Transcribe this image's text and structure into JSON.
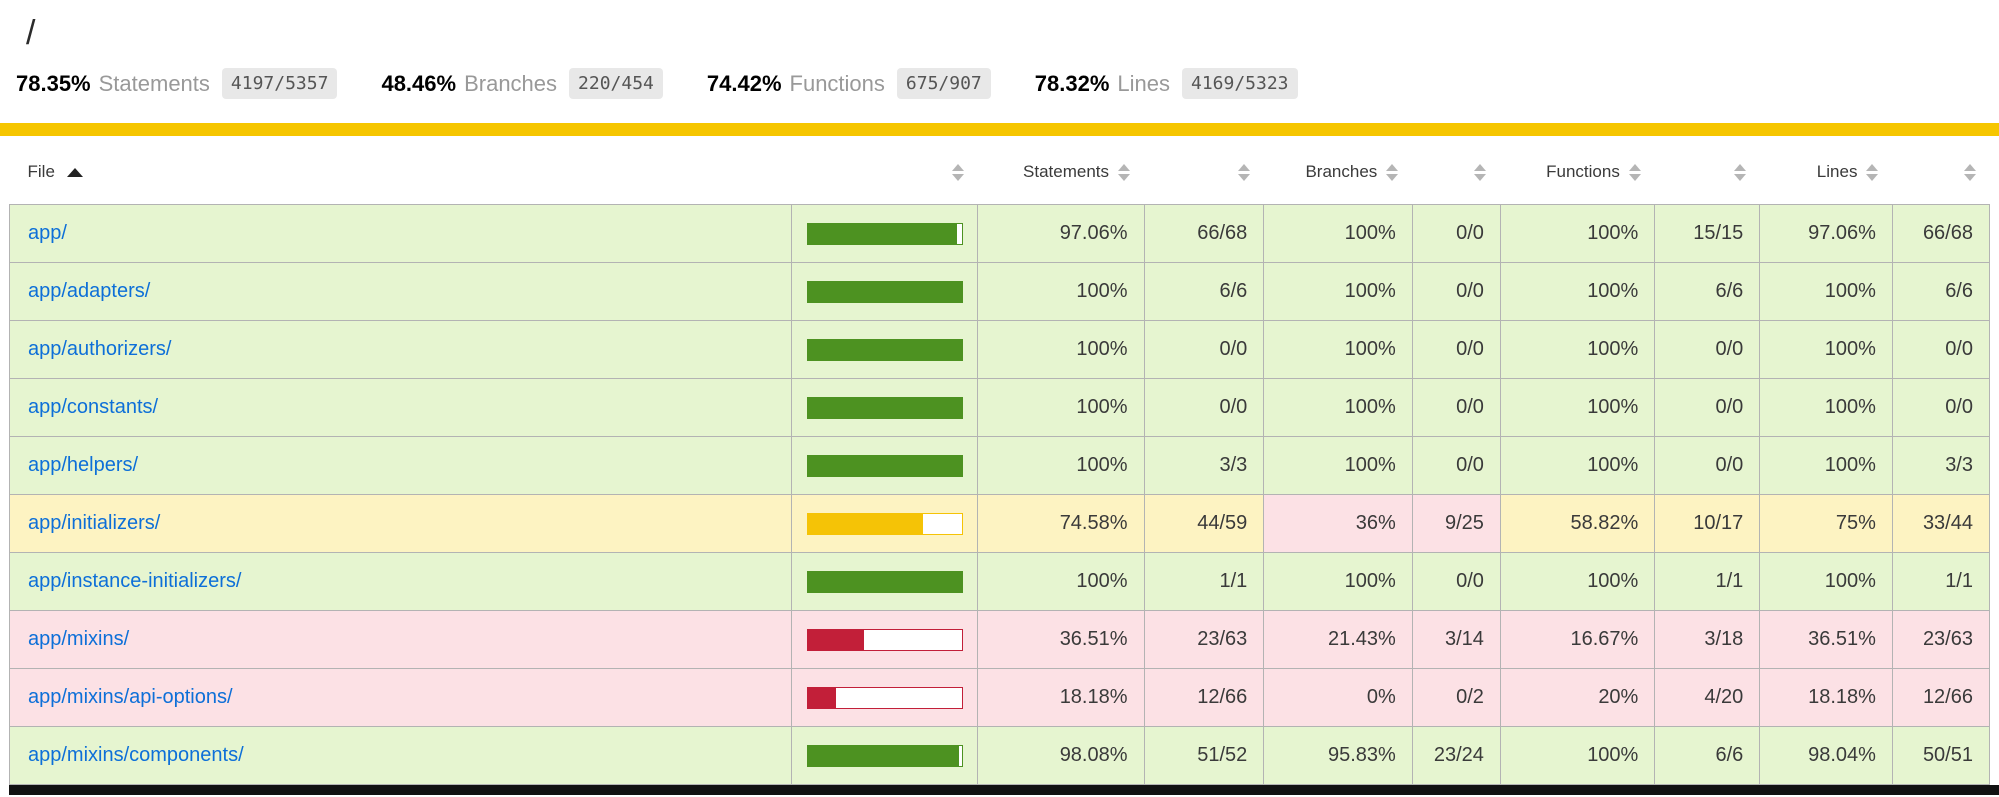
{
  "header": {
    "path": "/",
    "metrics": [
      {
        "pct": "78.35%",
        "label": "Statements",
        "fraction": "4197/5357"
      },
      {
        "pct": "48.46%",
        "label": "Branches",
        "fraction": "220/454"
      },
      {
        "pct": "74.42%",
        "label": "Functions",
        "fraction": "675/907"
      },
      {
        "pct": "78.32%",
        "label": "Lines",
        "fraction": "4169/5323"
      }
    ]
  },
  "colors": {
    "keyline": "#f6c600",
    "green": "#4d9221",
    "yellow": "#f5c306",
    "red": "#c21f39",
    "link": "#0d6fd8"
  },
  "table": {
    "header_cells": [
      {
        "label": "File",
        "type": "file",
        "sorted": "asc"
      },
      {
        "label": "",
        "type": "blank"
      },
      {
        "label": "Statements",
        "type": "pct"
      },
      {
        "label": "",
        "type": "blank"
      },
      {
        "label": "Branches",
        "type": "pct"
      },
      {
        "label": "",
        "type": "blank"
      },
      {
        "label": "Functions",
        "type": "pct"
      },
      {
        "label": "",
        "type": "blank"
      },
      {
        "label": "Lines",
        "type": "pct"
      },
      {
        "label": "",
        "type": "blank"
      }
    ],
    "rows": [
      {
        "file": "app/",
        "level": "high",
        "bar": {
          "pct": 97.06,
          "color": "green"
        },
        "stats": [
          {
            "pct": "97.06%",
            "abs": "66/68",
            "level": "high"
          },
          {
            "pct": "100%",
            "abs": "0/0",
            "level": "high"
          },
          {
            "pct": "100%",
            "abs": "15/15",
            "level": "high"
          },
          {
            "pct": "97.06%",
            "abs": "66/68",
            "level": "high"
          }
        ]
      },
      {
        "file": "app/adapters/",
        "level": "high",
        "bar": {
          "pct": 100,
          "color": "green"
        },
        "stats": [
          {
            "pct": "100%",
            "abs": "6/6",
            "level": "high"
          },
          {
            "pct": "100%",
            "abs": "0/0",
            "level": "high"
          },
          {
            "pct": "100%",
            "abs": "6/6",
            "level": "high"
          },
          {
            "pct": "100%",
            "abs": "6/6",
            "level": "high"
          }
        ]
      },
      {
        "file": "app/authorizers/",
        "level": "high",
        "bar": {
          "pct": 100,
          "color": "green"
        },
        "stats": [
          {
            "pct": "100%",
            "abs": "0/0",
            "level": "high"
          },
          {
            "pct": "100%",
            "abs": "0/0",
            "level": "high"
          },
          {
            "pct": "100%",
            "abs": "0/0",
            "level": "high"
          },
          {
            "pct": "100%",
            "abs": "0/0",
            "level": "high"
          }
        ]
      },
      {
        "file": "app/constants/",
        "level": "high",
        "bar": {
          "pct": 100,
          "color": "green"
        },
        "stats": [
          {
            "pct": "100%",
            "abs": "0/0",
            "level": "high"
          },
          {
            "pct": "100%",
            "abs": "0/0",
            "level": "high"
          },
          {
            "pct": "100%",
            "abs": "0/0",
            "level": "high"
          },
          {
            "pct": "100%",
            "abs": "0/0",
            "level": "high"
          }
        ]
      },
      {
        "file": "app/helpers/",
        "level": "high",
        "bar": {
          "pct": 100,
          "color": "green"
        },
        "stats": [
          {
            "pct": "100%",
            "abs": "3/3",
            "level": "high"
          },
          {
            "pct": "100%",
            "abs": "0/0",
            "level": "high"
          },
          {
            "pct": "100%",
            "abs": "0/0",
            "level": "high"
          },
          {
            "pct": "100%",
            "abs": "3/3",
            "level": "high"
          }
        ]
      },
      {
        "file": "app/initializers/",
        "level": "medium",
        "bar": {
          "pct": 74.58,
          "color": "yellow"
        },
        "stats": [
          {
            "pct": "74.58%",
            "abs": "44/59",
            "level": "medium"
          },
          {
            "pct": "36%",
            "abs": "9/25",
            "level": "low"
          },
          {
            "pct": "58.82%",
            "abs": "10/17",
            "level": "medium"
          },
          {
            "pct": "75%",
            "abs": "33/44",
            "level": "medium"
          }
        ]
      },
      {
        "file": "app/instance-initializers/",
        "level": "high",
        "bar": {
          "pct": 100,
          "color": "green"
        },
        "stats": [
          {
            "pct": "100%",
            "abs": "1/1",
            "level": "high"
          },
          {
            "pct": "100%",
            "abs": "0/0",
            "level": "high"
          },
          {
            "pct": "100%",
            "abs": "1/1",
            "level": "high"
          },
          {
            "pct": "100%",
            "abs": "1/1",
            "level": "high"
          }
        ]
      },
      {
        "file": "app/mixins/",
        "level": "low",
        "bar": {
          "pct": 36.51,
          "color": "red"
        },
        "stats": [
          {
            "pct": "36.51%",
            "abs": "23/63",
            "level": "low"
          },
          {
            "pct": "21.43%",
            "abs": "3/14",
            "level": "low"
          },
          {
            "pct": "16.67%",
            "abs": "3/18",
            "level": "low"
          },
          {
            "pct": "36.51%",
            "abs": "23/63",
            "level": "low"
          }
        ]
      },
      {
        "file": "app/mixins/api-options/",
        "level": "low",
        "bar": {
          "pct": 18.18,
          "color": "red"
        },
        "stats": [
          {
            "pct": "18.18%",
            "abs": "12/66",
            "level": "low"
          },
          {
            "pct": "0%",
            "abs": "0/2",
            "level": "low"
          },
          {
            "pct": "20%",
            "abs": "4/20",
            "level": "low"
          },
          {
            "pct": "18.18%",
            "abs": "12/66",
            "level": "low"
          }
        ]
      },
      {
        "file": "app/mixins/components/",
        "level": "high",
        "bar": {
          "pct": 98.08,
          "color": "green"
        },
        "stats": [
          {
            "pct": "98.08%",
            "abs": "51/52",
            "level": "high"
          },
          {
            "pct": "95.83%",
            "abs": "23/24",
            "level": "high"
          },
          {
            "pct": "100%",
            "abs": "6/6",
            "level": "high"
          },
          {
            "pct": "98.04%",
            "abs": "50/51",
            "level": "high"
          }
        ]
      }
    ]
  }
}
